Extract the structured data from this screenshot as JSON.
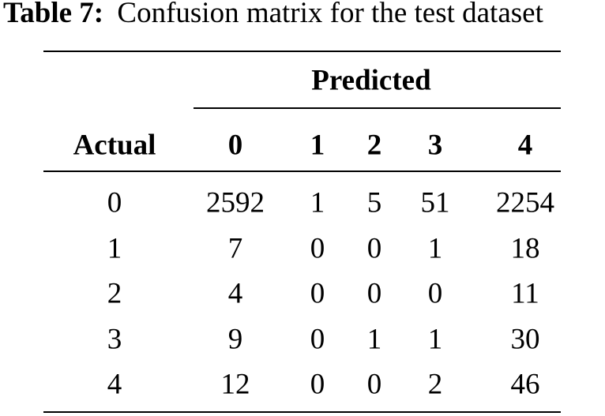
{
  "caption": {
    "label": "Table 7:",
    "text": "Confusion matrix for the test dataset"
  },
  "table": {
    "group_header": "Predicted",
    "columns": [
      "Actual",
      "0",
      "1",
      "2",
      "3",
      "4"
    ],
    "rows": [
      [
        0,
        2592,
        1,
        5,
        51,
        2254
      ],
      [
        1,
        7,
        0,
        0,
        1,
        18
      ],
      [
        2,
        4,
        0,
        0,
        0,
        11
      ],
      [
        3,
        9,
        0,
        1,
        1,
        30
      ],
      [
        4,
        12,
        0,
        0,
        2,
        46
      ]
    ]
  }
}
